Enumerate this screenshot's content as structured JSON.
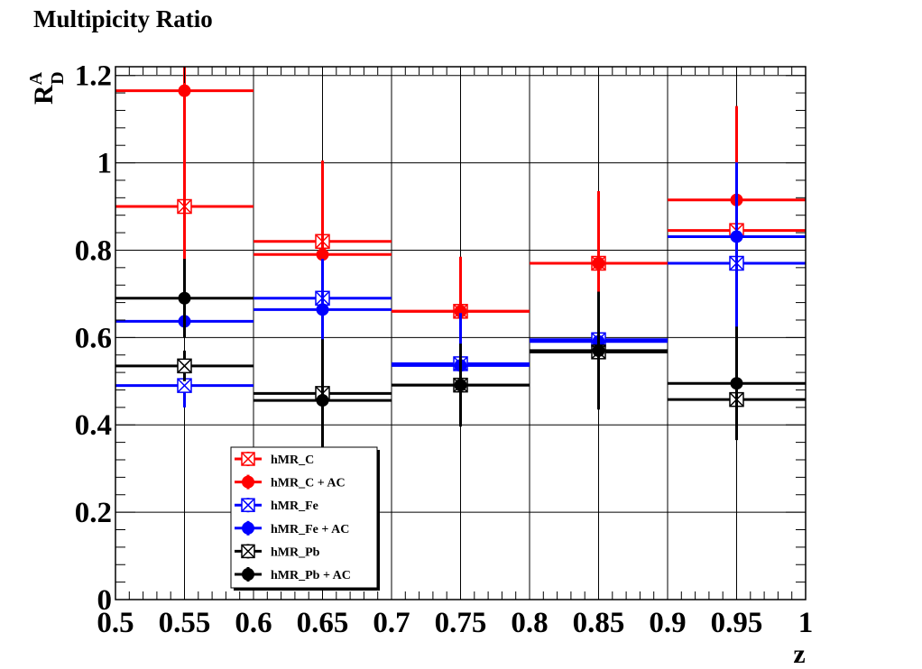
{
  "chart_data": {
    "type": "scatter",
    "title": "Multipicity Ratio",
    "xlabel": "z",
    "ylabel": {
      "base": "R",
      "sup": "A",
      "sub": "D"
    },
    "xlim": [
      0.5,
      1.0
    ],
    "ylim": [
      0,
      1.22
    ],
    "x_ticks": [
      "0.5",
      "0.55",
      "0.6",
      "0.65",
      "0.7",
      "0.75",
      "0.8",
      "0.85",
      "0.9",
      "0.95",
      "1"
    ],
    "y_ticks": [
      "0",
      "0.2",
      "0.4",
      "0.6",
      "0.8",
      "1",
      "1.2"
    ],
    "grid": true,
    "legend_position": "bottom-left",
    "bins": [
      [
        0.5,
        0.6
      ],
      [
        0.6,
        0.7
      ],
      [
        0.7,
        0.8
      ],
      [
        0.8,
        0.9
      ],
      [
        0.9,
        1.0
      ]
    ],
    "x": [
      0.55,
      0.65,
      0.75,
      0.85,
      0.95
    ],
    "series": [
      {
        "name": "hMR_C",
        "color": "#ff0000",
        "marker": "box-x",
        "values": [
          0.9,
          0.82,
          0.66,
          0.77,
          0.845
        ],
        "errors": [
          0.1,
          0.03,
          0.03,
          0.05,
          0.04
        ]
      },
      {
        "name": "hMR_C + AC",
        "color": "#ff0000",
        "marker": "circle",
        "values": [
          1.165,
          0.79,
          0.66,
          0.77,
          0.915
        ],
        "errors": [
          0.56,
          0.215,
          0.125,
          0.165,
          0.215
        ]
      },
      {
        "name": "hMR_Fe",
        "color": "#0000ff",
        "marker": "box-x",
        "values": [
          0.49,
          0.69,
          0.54,
          0.595,
          0.77
        ],
        "errors": [
          0.05,
          0.09,
          0.06,
          0.07,
          0.22
        ]
      },
      {
        "name": "hMR_Fe + AC",
        "color": "#0000ff",
        "marker": "circle",
        "values": [
          0.637,
          0.664,
          0.536,
          0.591,
          0.831
        ],
        "errors": [
          0.03,
          0.07,
          0.12,
          0.05,
          0.17
        ]
      },
      {
        "name": "hMR_Pb",
        "color": "#000000",
        "marker": "box-x",
        "values": [
          0.535,
          0.472,
          0.491,
          0.567,
          0.458
        ],
        "errors": [
          0.035,
          0.055,
          0.04,
          0.06,
          0.05
        ]
      },
      {
        "name": "hMR_Pb + AC",
        "color": "#000000",
        "marker": "circle",
        "values": [
          0.69,
          0.456,
          0.491,
          0.57,
          0.495
        ],
        "errors": [
          0.09,
          0.14,
          0.095,
          0.135,
          0.13
        ]
      }
    ]
  }
}
